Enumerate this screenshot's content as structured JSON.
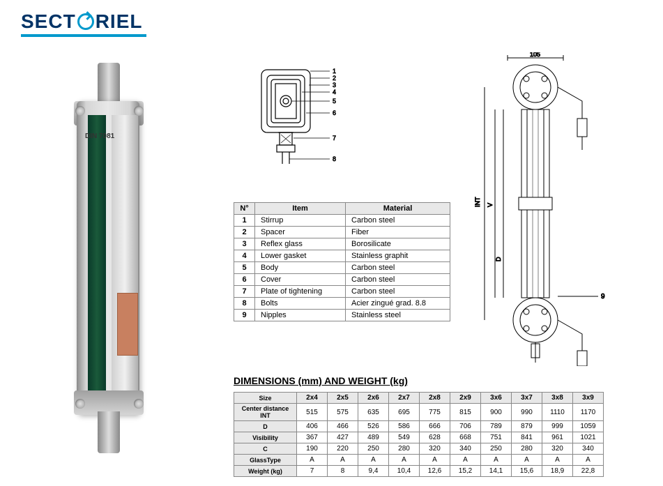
{
  "logo": {
    "text_part1": "SECT",
    "text_part2": "RIEL"
  },
  "din_label": "DIN\n7081",
  "cross_section": {
    "callouts": [
      "1",
      "2",
      "3",
      "4",
      "5",
      "6",
      "7",
      "8"
    ]
  },
  "parts_table": {
    "headers": [
      "N°",
      "Item",
      "Material"
    ],
    "rows": [
      [
        "1",
        "Stirrup",
        "Carbon steel"
      ],
      [
        "2",
        "Spacer",
        "Fiber"
      ],
      [
        "3",
        "Reflex glass",
        "Borosilicate"
      ],
      [
        "4",
        "Lower gasket",
        "Stainless graphit"
      ],
      [
        "5",
        "Body",
        "Carbon steel"
      ],
      [
        "6",
        "Cover",
        "Carbon steel"
      ],
      [
        "7",
        "Plate of tightening",
        "Carbon steel"
      ],
      [
        "8",
        "Bolts",
        "Acier zingué grad. 8.8"
      ],
      [
        "9",
        "Nipples",
        "Stainless steel"
      ]
    ]
  },
  "dim_title": "DIMENSIONS (mm) AND WEIGHT (kg)",
  "dim_table": {
    "col_headers": [
      "Size",
      "2x4",
      "2x5",
      "2x6",
      "2x7",
      "2x8",
      "2x9",
      "3x6",
      "3x7",
      "3x8",
      "3x9"
    ],
    "rows": [
      [
        "Center distance INT",
        "515",
        "575",
        "635",
        "695",
        "775",
        "815",
        "900",
        "990",
        "1110",
        "1170"
      ],
      [
        "D",
        "406",
        "466",
        "526",
        "586",
        "666",
        "706",
        "789",
        "879",
        "999",
        "1059"
      ],
      [
        "Visibility",
        "367",
        "427",
        "489",
        "549",
        "628",
        "668",
        "751",
        "841",
        "961",
        "1021"
      ],
      [
        "C",
        "190",
        "220",
        "250",
        "280",
        "320",
        "340",
        "250",
        "280",
        "320",
        "340"
      ],
      [
        "GlassType",
        "A",
        "A",
        "A",
        "A",
        "A",
        "A",
        "A",
        "A",
        "A",
        "A"
      ],
      [
        "Weight (kg)",
        "7",
        "8",
        "9,4",
        "10,4",
        "12,6",
        "15,2",
        "14,1",
        "15,6",
        "18,9",
        "22,8"
      ]
    ]
  },
  "side_drawing": {
    "dim_top": "105",
    "dim_int": "INT",
    "dim_v": "V",
    "dim_d": "D",
    "callout_9": "9"
  },
  "colors": {
    "brand_dark": "#003366",
    "brand_cyan": "#0099cc",
    "table_border": "#888888",
    "table_header_bg": "#e8e8e8",
    "glass_dark": "#0a3a2a"
  }
}
